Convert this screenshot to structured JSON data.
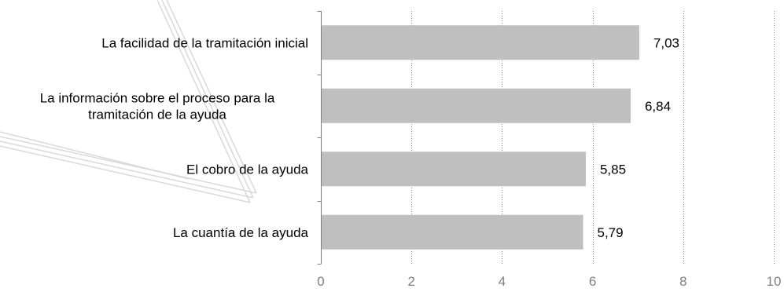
{
  "chart_data": {
    "type": "bar",
    "orientation": "horizontal",
    "categories": [
      [
        "La facilidad de la  tramitación inicial"
      ],
      [
        "La información sobre el  proceso para la",
        "tramitación  de la ayuda"
      ],
      [
        "El cobro de la ayuda"
      ],
      [
        "La cuantía de la ayuda"
      ]
    ],
    "values": [
      7.03,
      6.84,
      5.85,
      5.79
    ],
    "value_labels": [
      "7,03",
      "6,84",
      "5,85",
      "5,79"
    ],
    "xlim": [
      0,
      10
    ],
    "xticks": [
      0,
      2,
      4,
      6,
      8,
      10
    ],
    "xtick_labels": [
      "0",
      "2",
      "4",
      "6",
      "8",
      "10"
    ],
    "grid": "vertical-dotted",
    "title": "",
    "xlabel": "",
    "ylabel": "",
    "colors": {
      "bar": "#bfbfbf",
      "gridline": "#8c8c8c",
      "axis": "#7f7f7f",
      "tick_text": "#7f7f7f",
      "text": "#000000",
      "decoration": "#d9d9d9"
    }
  }
}
